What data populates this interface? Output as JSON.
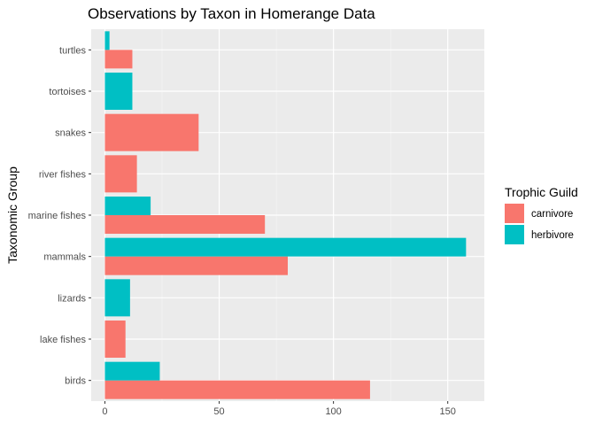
{
  "chart_data": {
    "type": "bar",
    "orientation": "horizontal",
    "position": "dodge",
    "title": "Observations by Taxon in Homerange Data",
    "xlabel": "",
    "ylabel": "Taxonomic Group",
    "xlim": [
      -6,
      166
    ],
    "xticks": [
      0,
      50,
      100,
      150
    ],
    "grid": true,
    "legend": {
      "title": "Trophic Guild",
      "placement": "right"
    },
    "categories": [
      "birds",
      "lake fishes",
      "lizards",
      "mammals",
      "marine fishes",
      "river fishes",
      "snakes",
      "tortoises",
      "turtles"
    ],
    "series": [
      {
        "name": "carnivore",
        "color": "#F8766D",
        "values": [
          116,
          9,
          null,
          80,
          70,
          14,
          41,
          null,
          12
        ]
      },
      {
        "name": "herbivore",
        "color": "#00BFC4",
        "values": [
          24,
          null,
          11,
          158,
          20,
          null,
          null,
          12,
          2
        ]
      }
    ]
  }
}
